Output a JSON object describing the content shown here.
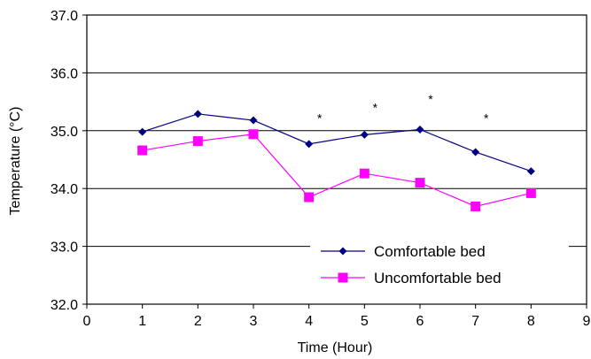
{
  "chart_data": {
    "type": "line",
    "title": "",
    "xlabel": "Time (Hour)",
    "ylabel": "Temperature (°C)",
    "xlim": [
      0,
      9
    ],
    "ylim": [
      32.0,
      37.0
    ],
    "x_ticks": [
      "0",
      "1",
      "2",
      "3",
      "4",
      "5",
      "6",
      "7",
      "8",
      "9"
    ],
    "y_ticks": [
      "32.0",
      "33.0",
      "34.0",
      "35.0",
      "36.0",
      "37.0"
    ],
    "grid": "horizontal",
    "legend_position": "bottom-right",
    "x": [
      1,
      2,
      3,
      4,
      5,
      6,
      7,
      8
    ],
    "series": [
      {
        "name": "Comfortable bed",
        "color": "#000080",
        "marker": "diamond",
        "values": [
          34.98,
          35.29,
          35.18,
          34.77,
          34.93,
          35.02,
          34.63,
          34.3
        ]
      },
      {
        "name": "Uncomfortable bed",
        "color": "#ff00ff",
        "marker": "square",
        "values": [
          34.66,
          34.82,
          34.94,
          33.85,
          34.26,
          34.1,
          33.69,
          33.92
        ]
      }
    ],
    "annotations": [
      {
        "text": "*",
        "x": 4,
        "y": 35.25
      },
      {
        "text": "*",
        "x": 5,
        "y": 35.43
      },
      {
        "text": "*",
        "x": 6,
        "y": 35.58
      },
      {
        "text": "*",
        "x": 7,
        "y": 35.25
      }
    ]
  }
}
